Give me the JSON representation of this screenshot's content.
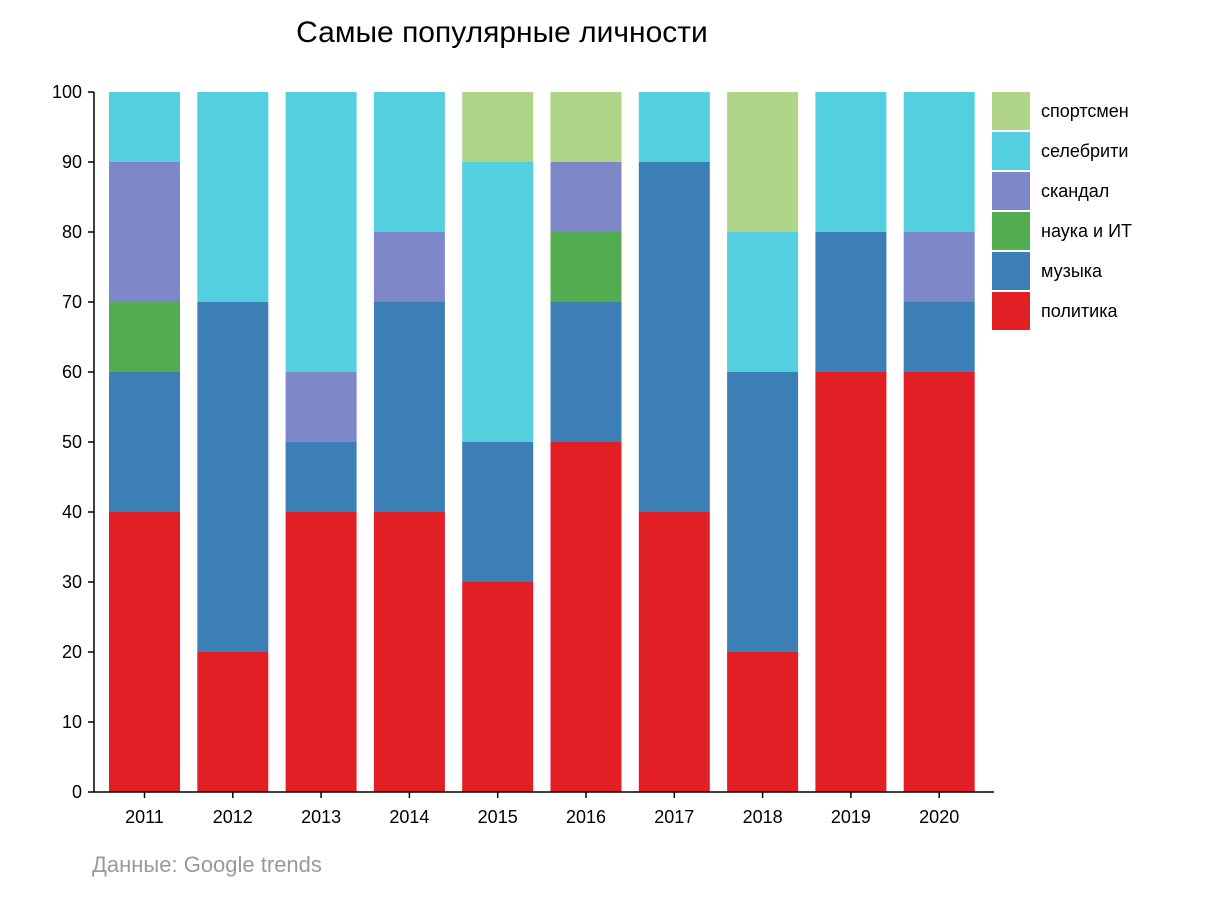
{
  "chart_data": {
    "type": "bar",
    "stacked": true,
    "title": "Самые популярные личности",
    "xlabel": "",
    "ylabel": "",
    "ylim": [
      0,
      100
    ],
    "y_ticks": [
      "0",
      "10",
      "20",
      "30",
      "40",
      "50",
      "60",
      "70",
      "80",
      "90",
      "100"
    ],
    "grid": false,
    "legend_position": "right",
    "categories": [
      "2011",
      "2012",
      "2013",
      "2014",
      "2015",
      "2016",
      "2017",
      "2018",
      "2019",
      "2020"
    ],
    "series": [
      {
        "name": "политика",
        "color": "#e31f26",
        "values": [
          40,
          20,
          40,
          40,
          30,
          50,
          40,
          20,
          60,
          60
        ]
      },
      {
        "name": "музыка",
        "color": "#3c7fb6",
        "values": [
          20,
          50,
          10,
          30,
          20,
          20,
          50,
          40,
          20,
          10
        ]
      },
      {
        "name": "наука и ИТ",
        "color": "#51ad4f",
        "values": [
          10,
          0,
          0,
          0,
          0,
          10,
          0,
          0,
          0,
          0
        ]
      },
      {
        "name": "скандал",
        "color": "#7e88c8",
        "values": [
          20,
          0,
          10,
          10,
          0,
          10,
          0,
          0,
          0,
          10
        ]
      },
      {
        "name": "селебрити",
        "color": "#54cfe0",
        "values": [
          10,
          30,
          40,
          20,
          40,
          0,
          10,
          20,
          20,
          20
        ]
      },
      {
        "name": "спортсмен",
        "color": "#b0d488",
        "values": [
          0,
          0,
          0,
          0,
          10,
          10,
          0,
          20,
          0,
          0
        ]
      }
    ],
    "legend_order": [
      "спортсмен",
      "селебрити",
      "скандал",
      "наука и ИТ",
      "музыка",
      "политика"
    ],
    "source_note": "Данные: Google trends"
  }
}
